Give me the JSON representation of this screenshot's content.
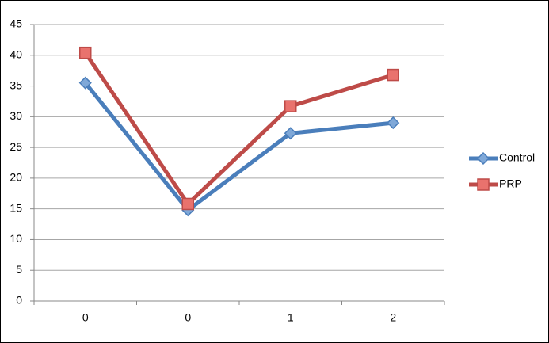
{
  "chart_data": {
    "type": "line",
    "categories": [
      "0",
      "0",
      "1",
      "2"
    ],
    "series": [
      {
        "name": "Control",
        "color": "#4a7ebb",
        "marker": "diamond",
        "values": [
          35.5,
          14.8,
          27.3,
          29
        ]
      },
      {
        "name": "PRP",
        "color": "#be4b48",
        "marker": "square",
        "values": [
          40.4,
          15.8,
          31.7,
          36.8
        ]
      }
    ],
    "ylim": [
      0,
      45
    ],
    "yticks": [
      0,
      5,
      10,
      15,
      20,
      25,
      30,
      35,
      40,
      45
    ],
    "grid": true,
    "legend": "right"
  }
}
